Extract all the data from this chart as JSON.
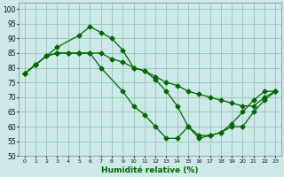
{
  "xlabel": "Humidité relative (%)",
  "bg_color": "#cce8e8",
  "grid_color": "#99ccbb",
  "line_color": "#006600",
  "xlim": [
    -0.5,
    23.5
  ],
  "ylim": [
    50,
    102
  ],
  "yticks": [
    50,
    55,
    60,
    65,
    70,
    75,
    80,
    85,
    90,
    95,
    100
  ],
  "xticks": [
    0,
    1,
    2,
    3,
    4,
    5,
    6,
    7,
    8,
    9,
    10,
    11,
    12,
    13,
    14,
    15,
    16,
    17,
    18,
    19,
    20,
    21,
    22,
    23
  ],
  "series": [
    {
      "x": [
        0,
        1,
        3,
        5,
        6,
        7,
        8,
        9,
        10,
        11,
        12,
        13,
        14,
        15,
        16,
        17,
        18,
        19,
        20,
        21,
        22,
        23
      ],
      "y": [
        78,
        81,
        87,
        91,
        94,
        92,
        90,
        86,
        80,
        79,
        76,
        72,
        67,
        60,
        56,
        57,
        58,
        61,
        65,
        69,
        72,
        72
      ]
    },
    {
      "x": [
        0,
        1,
        2,
        3,
        4,
        5,
        6,
        7,
        8,
        9,
        10,
        11,
        12,
        13,
        14,
        15,
        16,
        17,
        18,
        19,
        20,
        21,
        22,
        23
      ],
      "y": [
        78,
        81,
        84,
        85,
        85,
        85,
        85,
        85,
        83,
        82,
        80,
        79,
        77,
        75,
        74,
        72,
        71,
        70,
        69,
        68,
        67,
        67,
        70,
        72
      ]
    },
    {
      "x": [
        0,
        1,
        2,
        3,
        4,
        5,
        6,
        7,
        9,
        10,
        11,
        12,
        13,
        14,
        15,
        16,
        17,
        18,
        19,
        20,
        21,
        22,
        23
      ],
      "y": [
        78,
        81,
        84,
        85,
        85,
        85,
        85,
        80,
        72,
        67,
        64,
        60,
        56,
        56,
        60,
        57,
        57,
        58,
        60,
        60,
        65,
        69,
        72
      ]
    }
  ]
}
